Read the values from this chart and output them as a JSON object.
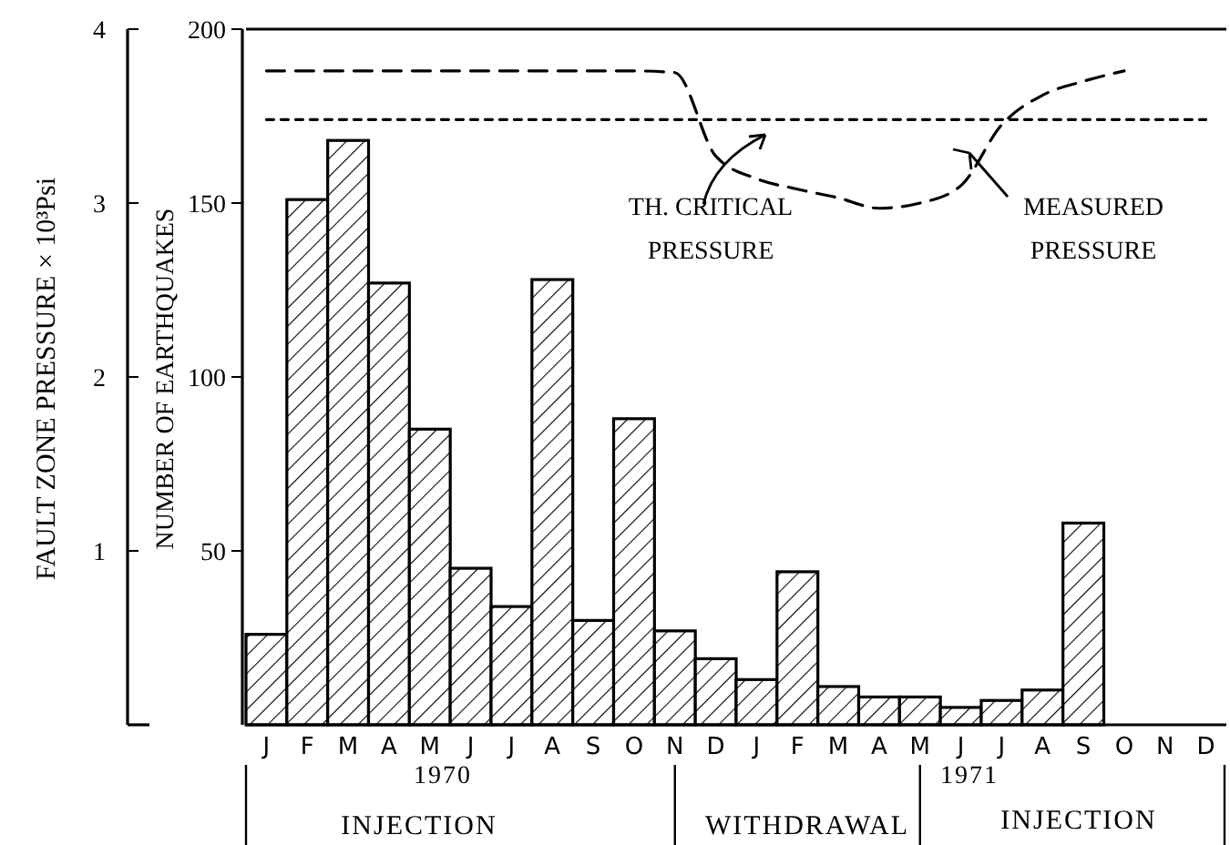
{
  "chart_data": {
    "type": "bar",
    "ylabel": "NUMBER OF EARTHQUAKES",
    "y2label": "FAULT ZONE PRESSURE × 10³Psi",
    "categories": [
      "J",
      "F",
      "M",
      "A",
      "M",
      "J",
      "J",
      "A",
      "S",
      "O",
      "N",
      "D",
      "J",
      "F",
      "M",
      "A",
      "M",
      "J",
      "J",
      "A",
      "S",
      "O",
      "N",
      "D"
    ],
    "ylim": [
      0,
      200
    ],
    "yticks": [
      50,
      100,
      150,
      200
    ],
    "y2lim": [
      0,
      4
    ],
    "y2ticks": [
      1,
      2,
      3,
      4
    ],
    "grid": false,
    "series": [
      {
        "color": "#000000",
        "values": [
          26,
          151,
          168,
          127,
          85,
          45,
          34,
          128,
          30,
          88,
          27,
          19,
          13,
          44,
          11,
          8,
          8,
          5,
          7,
          10,
          58,
          null,
          null,
          null
        ]
      },
      {
        "type": "line",
        "axis": "y2",
        "name": "TH. CRITICAL PRESSURE",
        "color": "#000000",
        "line_style": "dotted",
        "values": [
          3.48,
          3.48,
          3.48,
          3.48,
          3.48,
          3.48,
          3.48,
          3.48,
          3.48,
          3.48,
          3.48,
          3.48,
          3.48,
          3.48,
          3.48,
          3.48,
          3.48,
          3.48,
          3.48,
          3.48,
          3.48,
          3.48,
          3.48,
          3.48
        ]
      },
      {
        "type": "line",
        "axis": "y2",
        "name": "MEASURED PRESSURE",
        "color": "#000000",
        "line_style": "dashed",
        "values": [
          3.76,
          3.76,
          3.76,
          3.76,
          3.76,
          3.76,
          3.76,
          3.76,
          3.76,
          3.76,
          3.75,
          3.27,
          3.14,
          3.08,
          3.03,
          2.97,
          3.0,
          3.1,
          3.45,
          3.62,
          3.7,
          3.76,
          null,
          null
        ]
      }
    ],
    "annotations": [
      "1970",
      "1971",
      "INJECTION",
      "WITHDRAWAL",
      "INJECTION"
    ]
  }
}
